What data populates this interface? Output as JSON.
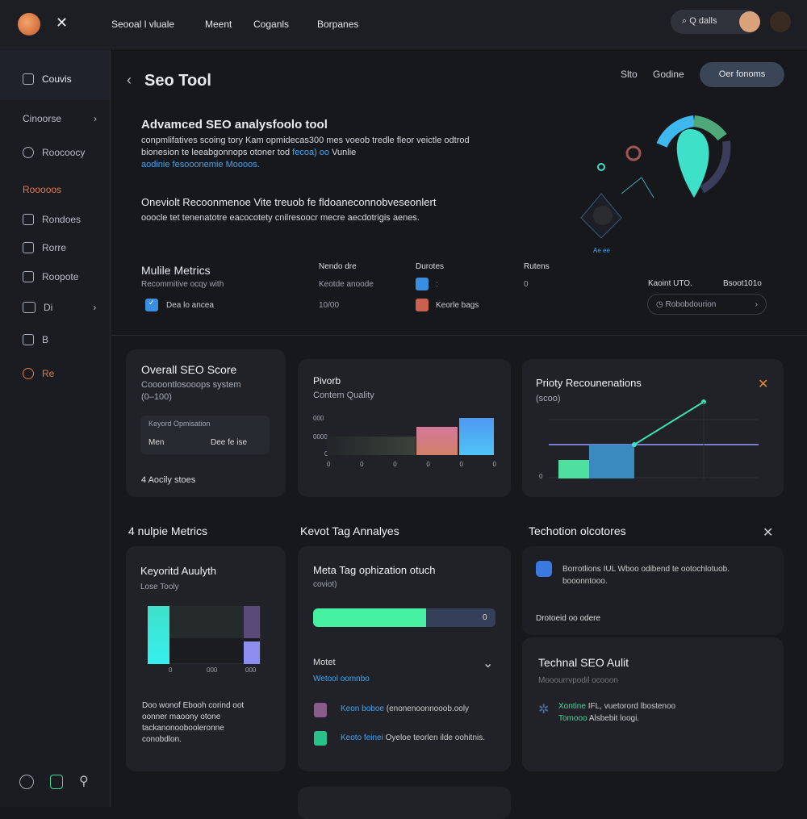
{
  "topbar": {
    "nav": [
      "Seooal l vluale",
      "Meent",
      "Coganls",
      "Borpanes"
    ],
    "search_label": "Q dalls"
  },
  "sidebar": {
    "items": [
      {
        "label": "Couvis",
        "icon": "lock-icon"
      },
      {
        "label": "Cinoorse",
        "icon": "chevron-right-icon"
      },
      {
        "label": "Roocoocy",
        "icon": "clock-icon"
      },
      {
        "label": "Rooooos",
        "icon": ""
      },
      {
        "label": "Rondoes",
        "icon": "folder-icon"
      },
      {
        "label": "Rorre",
        "icon": "monitor-icon"
      },
      {
        "label": "Roopote",
        "icon": "clipboard-icon"
      },
      {
        "label": "Di",
        "icon": "card-icon"
      },
      {
        "label": "B",
        "icon": "doc-icon"
      },
      {
        "label": "Re",
        "icon": "chat-icon"
      }
    ],
    "accent": "#e07a4a"
  },
  "header": {
    "title": "Seo Tool",
    "links": [
      "Slto",
      "Godine"
    ],
    "cta": "Oer fonoms"
  },
  "hero": {
    "heading": "Advamced SEO analysfoolo tool",
    "body": "conpmlifatives scoing  tory Kam opmidecas300 mes voeob tredle fleor veictle odtrod bionesion te leeabgonnops otoner tod",
    "body_link": "fecoa) oo",
    "body_tail": "Vunlie",
    "body_line3": "aodinie fesooonemie Moooos.",
    "heading2": "Oneviolt Recoonmenoe Vite treuob fe fldoaneconnobveseonlert",
    "body2": "ooocle tet tenenatotre eacocotety cnilresoocr mecre aecdotrigis aenes.",
    "illustration_label": "Ae ee"
  },
  "metrics": {
    "title": "Mulile Metrics",
    "subtitle": "Recommitive ocqy with",
    "check_label": "Dea lo ancea",
    "col1": {
      "header": "Nendo dre",
      "v1": "Keotde anoode",
      "v2": "10/00"
    },
    "col2": {
      "header": "Durotes",
      "v1": ":",
      "v2": "Keorle bags"
    },
    "col3": {
      "header": "Rutens",
      "v1": "0"
    },
    "right": {
      "a": "Kaoint UTO.",
      "b": "Bsoot101o",
      "select": "Robobdourion"
    }
  },
  "score_card": {
    "title": "Overall SEO Score",
    "sub": "Coooontlosooops system",
    "range": "(0–100)",
    "inner_title": "Keyord Opmisation",
    "inner_left": "Men",
    "inner_right": "Dee fe ise",
    "footer": "4 Aocily stoes"
  },
  "quality_card": {
    "title": "Pivorb",
    "sub": "Contem Quality",
    "y_ticks": [
      "000",
      "0000",
      "0"
    ],
    "x_ticks": [
      "0",
      "0",
      "0",
      "0",
      "0",
      "0"
    ]
  },
  "priority_card": {
    "title": "Prioty Recounenations",
    "sub": "(scoo)",
    "y_tick": "0"
  },
  "section_labels": [
    "4 nulpie Metrics",
    "Kevot Tag Annalyes",
    "Techotion olcotores"
  ],
  "keyword_card": {
    "title": "Keyoritd Auulyth",
    "sub": "Lose Tooly",
    "x_ticks": [
      "0",
      "000",
      "000"
    ],
    "body": "Doo wonof Ebooh corind oot oonner maoony otone tackanonoobooleronne conobdlon."
  },
  "meta_card": {
    "title": "Meta Tag ophization otuch",
    "sub": "coviot)",
    "progress": 0.62,
    "progress_label": "0",
    "section": "Motet",
    "section_link": "Wetool oomnbo",
    "item1_link": "Keon boboe",
    "item1": "(enonenoonnooob.ooly",
    "item2_link": "Keoto feinei",
    "item2": "Oyeloe teorlen ilde oohitnis."
  },
  "tech_top": {
    "text": "Borrotlions  IUL Wboo odibend te ootochlotuob. booonntooo.",
    "link": "Drotoeid oo odere"
  },
  "audit_card": {
    "title": "Technal SEO Aulit",
    "sub": "Mooourrvpodil ocooon",
    "link1": "Xontine",
    "text1": "IFL, vuetorord lbostenoo",
    "link2": "Tomooo",
    "text2": "Alsbebit loogi."
  },
  "colors": {
    "bg": "#17181c",
    "card": "#202228",
    "teal": "#3ee0c8",
    "green": "#3ddc97",
    "blue": "#3ea6f5",
    "accent": "#e07a4a"
  }
}
